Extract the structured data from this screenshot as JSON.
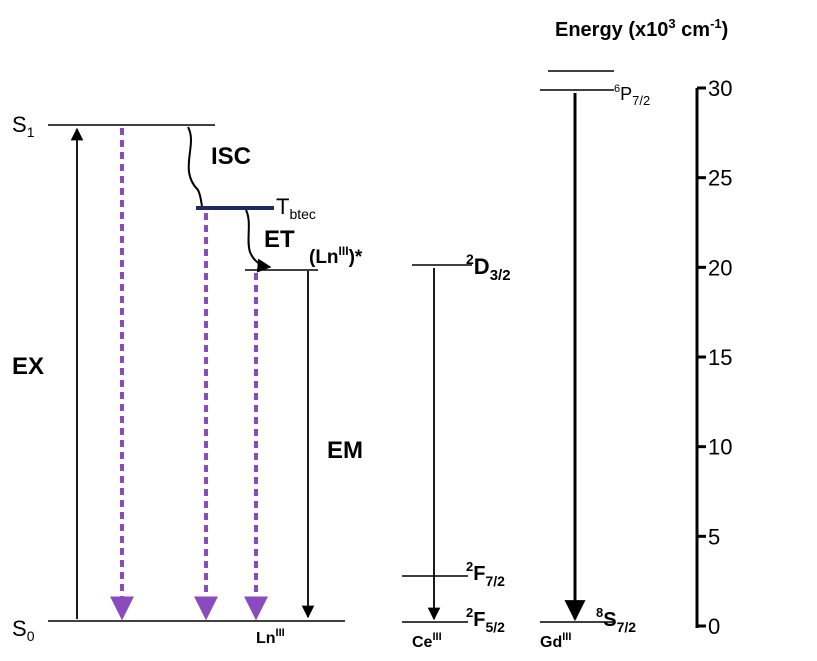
{
  "axis": {
    "title_text": "Energy (x10",
    "title_sup": "3",
    "title_unit": " cm",
    "title_unit_sup": "-1",
    "title_close": ")",
    "ticks": [
      {
        "value": 30,
        "label": "30"
      },
      {
        "value": 25,
        "label": "25"
      },
      {
        "value": 20,
        "label": "20"
      },
      {
        "value": 15,
        "label": "15"
      },
      {
        "value": 10,
        "label": "10"
      },
      {
        "value": 5,
        "label": "5"
      },
      {
        "value": 0,
        "label": "0"
      }
    ],
    "range": [
      0,
      31
    ]
  },
  "ligand": {
    "s1_main": "S",
    "s1_sub": "1",
    "s0_main": "S",
    "s0_sub": "0",
    "ex_label": "EX",
    "isc_label": "ISC",
    "t_main": "T",
    "t_sub": "btec",
    "et_label": "ET",
    "t_color": "#1f2a5a",
    "relax_color": "#8a4bbf"
  },
  "lanthanide": {
    "excited_open": "(Ln",
    "excited_sup": "III",
    "excited_close": ")*",
    "em_label": "EM",
    "ground_main": "Ln",
    "ground_sup": "III"
  },
  "cerium": {
    "d_sup": "2",
    "d_main": "D",
    "d_sub": "3/2",
    "f72_sup": "2",
    "f72_main": "F",
    "f72_sub": "7/2",
    "f52_sup": "2",
    "f52_main": "F",
    "f52_sub": "5/2",
    "ion_main": "Ce",
    "ion_sup": "III"
  },
  "gadolinium": {
    "p_sup": "6",
    "p_main": "P",
    "p_sub": "7/2",
    "s_sup": "8",
    "s_main": "S",
    "s_sub": "7/2",
    "ion_main": "Gd",
    "ion_sup": "III"
  }
}
